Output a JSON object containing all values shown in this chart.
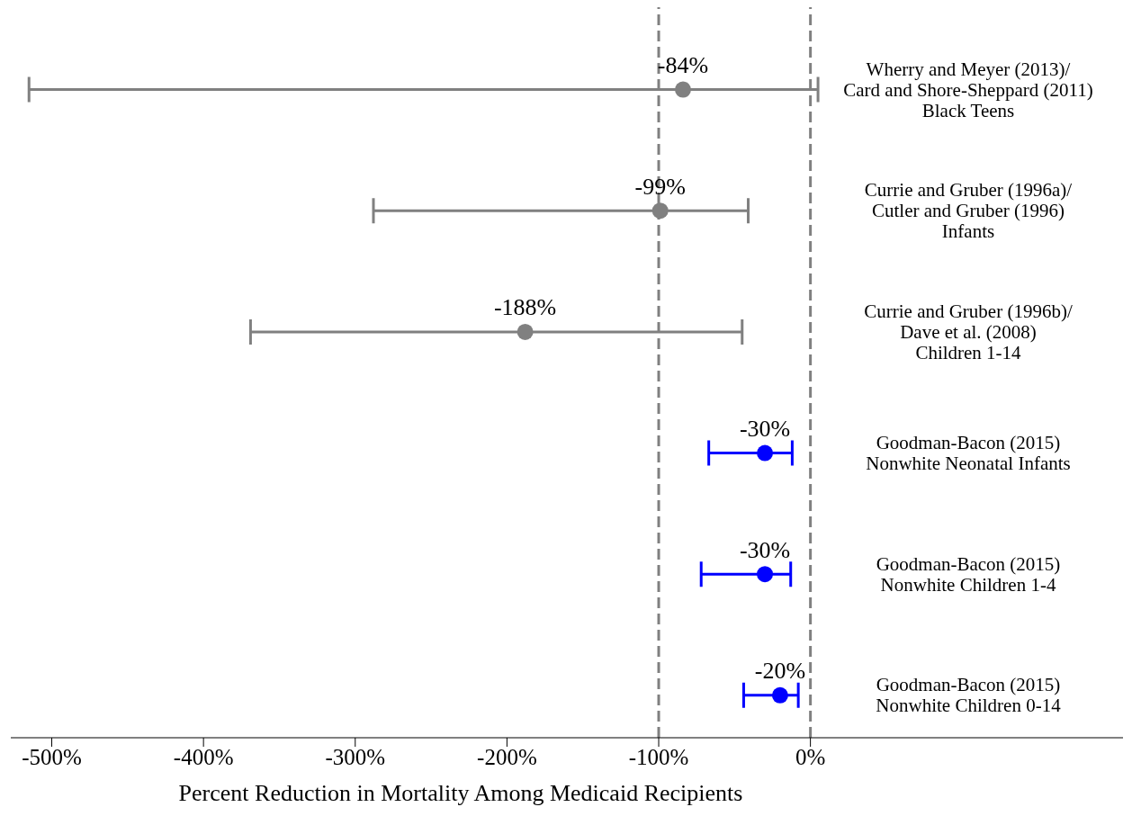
{
  "chart_data": {
    "type": "scatter",
    "orientation": "horizontal",
    "xlabel": "Percent Reduction in Mortality Among Medicaid Recipients",
    "categories": [
      "Wherry and Meyer (2013)/\nCard and Shore-Sheppard (2011)\nBlack Teens",
      "Currie and Gruber (1996a)/\nCutler and Gruber (1996)\nInfants",
      "Currie and Gruber (1996b)/\nDave et al. (2008)\nChildren 1-14",
      "Goodman-Bacon (2015)\nNonwhite Neonatal Infants",
      "Goodman-Bacon (2015)\nNonwhite Children 1-4",
      "Goodman-Bacon (2015)\nNonwhite Children 0-14"
    ],
    "values": [
      -84,
      -99,
      -188,
      -30,
      -30,
      -20
    ],
    "colors": [
      "#808080",
      "#808080",
      "#808080",
      "#0000ff",
      "#0000ff",
      "#0000ff"
    ],
    "errors": [
      [
        -515,
        5
      ],
      [
        -288,
        -41
      ],
      [
        -369,
        -45
      ],
      [
        -67,
        -12
      ],
      [
        -72,
        -13
      ],
      [
        -44,
        -8
      ]
    ],
    "value_labels": [
      "-84%",
      "-99%",
      "-188%",
      "-30%",
      "-30%",
      "-20%"
    ],
    "xlim": [
      -527,
      206
    ],
    "xticks": [
      {
        "value": -500,
        "label": "-500%"
      },
      {
        "value": -400,
        "label": "-400%"
      },
      {
        "value": -300,
        "label": "-300%"
      },
      {
        "value": -200,
        "label": "-200%"
      },
      {
        "value": -100,
        "label": "-100%"
      },
      {
        "value": 0,
        "label": "0%"
      }
    ],
    "ref_lines": [
      {
        "axis": "x",
        "value": -100,
        "color": "#808080",
        "line_style": "dashed"
      },
      {
        "axis": "x",
        "value": 0,
        "color": "#808080",
        "line_style": "dashed"
      }
    ],
    "marker": "circle",
    "grid": false,
    "legend": false
  }
}
